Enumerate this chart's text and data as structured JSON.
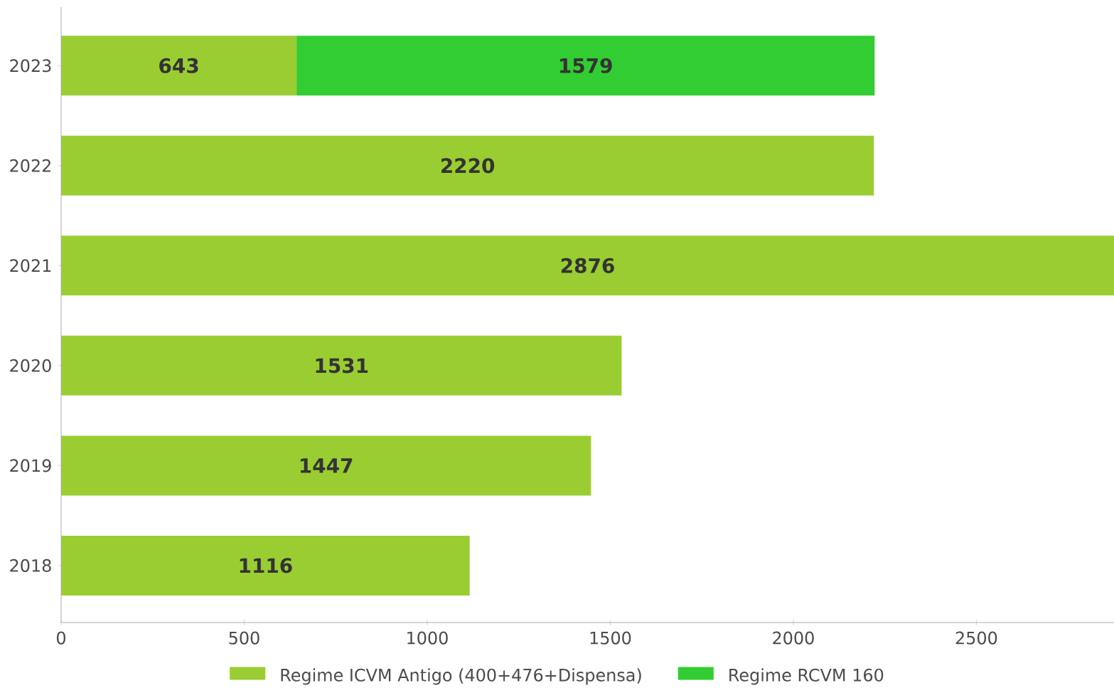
{
  "chart_data": {
    "type": "bar",
    "orientation": "horizontal",
    "stacked": true,
    "data_labels": true,
    "legend": "bottom",
    "grid": false,
    "categories": [
      "2023",
      "2022",
      "2021",
      "2020",
      "2019",
      "2018"
    ],
    "series": [
      {
        "name": "Regime ICVM Antigo (400+476+Dispensa)",
        "color": "#9acd32",
        "values": [
          643,
          2220,
          2876,
          1531,
          1447,
          1116
        ]
      },
      {
        "name": "Regime RCVM 160",
        "color": "#32cd32",
        "values": [
          1579,
          null,
          null,
          null,
          null,
          null
        ]
      }
    ],
    "xlim": [
      0,
      2876
    ],
    "xticks": [
      0,
      500,
      1000,
      1500,
      2000,
      2500
    ]
  }
}
